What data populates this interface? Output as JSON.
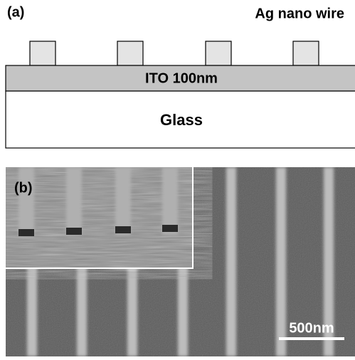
{
  "panel_a": {
    "label": "(a)",
    "wire_label": "Ag nano wire",
    "ito_label": "ITO 100nm",
    "glass_label": "Glass"
  },
  "panel_b": {
    "label": "(b)",
    "scale_bar": "500nm"
  }
}
